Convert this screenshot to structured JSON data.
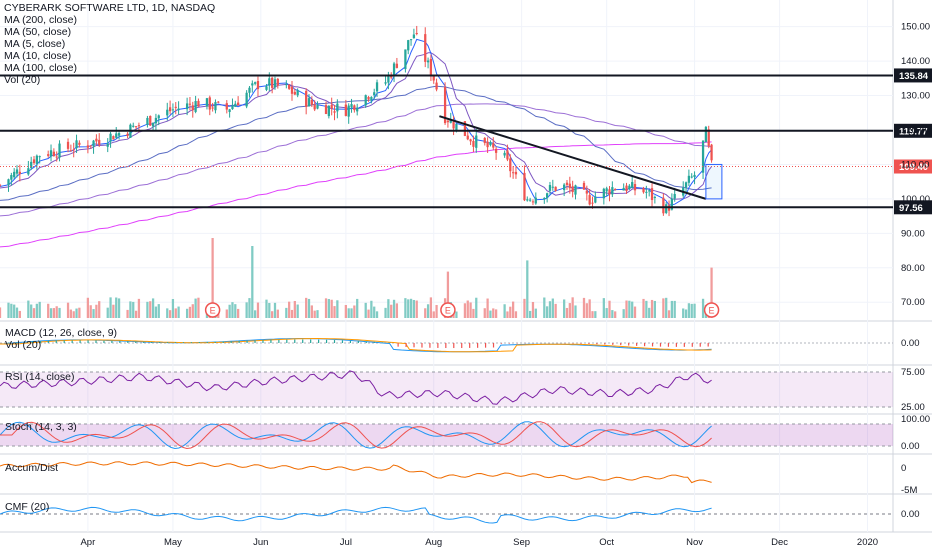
{
  "header": {
    "symbol_line": "CYBERARK SOFTWARE LTD, 1D, NASDAQ",
    "indicators": [
      "MA (200, close)",
      "MA (50, close)",
      "MA (5, close)",
      "MA (10, close)",
      "MA (100, close)",
      "Vol (20)"
    ]
  },
  "panes": {
    "macd": "MACD (12, 26, close, 9)",
    "vol": "Vol (20)",
    "rsi": "RSI (14, close)",
    "stoch": "Stoch (14, 3, 3)",
    "ad": "Accum/Dist",
    "cmf": "CMF (20)"
  },
  "colors": {
    "up": "#26a69a",
    "down": "#ef5350",
    "vol_up": "#80cbc4",
    "vol_down": "#f19c9c",
    "ma200": "#e040fb",
    "ma50": "#5b6ec4",
    "ma5": "#2962ff",
    "ma10": "#7e57c2",
    "ma100": "#9c6fd6",
    "rsi": "#7b1fa2",
    "stoch_k": "#2196f3",
    "stoch_d": "#ef5350",
    "ad": "#ef6c00",
    "cmf": "#2196f3"
  },
  "chart_data": [
    {
      "type": "candlestick",
      "title": "CYBERARK SOFTWARE LTD, 1D, NASDAQ",
      "x_labels": [
        "Apr",
        "May",
        "Jun",
        "Jul",
        "Aug",
        "Sep",
        "Oct",
        "Nov",
        "Dec",
        "2020"
      ],
      "y_ticks": [
        70,
        80,
        90,
        100,
        110,
        120,
        130,
        140,
        150
      ],
      "ylim": [
        66,
        156
      ],
      "x_range": [
        "2019-03-01",
        "2020-01-10"
      ],
      "ohlc_anchors": [
        [
          "2019-03-01",
          104
        ],
        [
          "2019-03-15",
          113
        ],
        [
          "2019-04-01",
          116
        ],
        [
          "2019-04-15",
          120
        ],
        [
          "2019-05-01",
          126
        ],
        [
          "2019-05-10",
          128
        ],
        [
          "2019-05-20",
          126
        ],
        [
          "2019-06-01",
          134
        ],
        [
          "2019-06-10",
          132
        ],
        [
          "2019-06-20",
          127
        ],
        [
          "2019-07-01",
          126
        ],
        [
          "2019-07-15",
          134
        ],
        [
          "2019-07-25",
          148
        ],
        [
          "2019-08-01",
          135
        ],
        [
          "2019-08-05",
          124
        ],
        [
          "2019-08-15",
          117
        ],
        [
          "2019-08-25",
          113
        ],
        [
          "2019-09-03",
          100
        ],
        [
          "2019-09-15",
          104
        ],
        [
          "2019-09-25",
          100
        ],
        [
          "2019-10-05",
          104
        ],
        [
          "2019-10-15",
          102
        ],
        [
          "2019-10-22",
          97
        ],
        [
          "2019-11-01",
          107
        ],
        [
          "2019-11-05",
          119
        ],
        [
          "2019-11-07",
          109.4
        ]
      ],
      "horizontal_levels": [
        {
          "label": "135.84",
          "value": 135.84,
          "color": "#131722"
        },
        {
          "label": "119.77",
          "value": 119.77,
          "color": "#131722"
        },
        {
          "label": "109.40",
          "value": 109.4,
          "color": "#ef5350"
        },
        {
          "label": "97.56",
          "value": 97.56,
          "color": "#131722"
        }
      ],
      "trendline": {
        "from": [
          "2019-08-03",
          124
        ],
        "to": [
          "2019-11-05",
          100
        ]
      },
      "earnings_markers": [
        {
          "label": "E",
          "date": "2019-05-15"
        },
        {
          "label": "E",
          "date": "2019-08-06"
        },
        {
          "label": "E",
          "date": "2019-11-07"
        }
      ],
      "volume_spikes": [
        {
          "date": "2019-05-15",
          "rel": 1.0
        },
        {
          "date": "2019-05-29",
          "rel": 0.9
        },
        {
          "date": "2019-08-06",
          "rel": 0.58
        },
        {
          "date": "2019-09-03",
          "rel": 0.72
        },
        {
          "date": "2019-11-07",
          "rel": 0.63
        }
      ]
    },
    {
      "type": "line",
      "title": "MACD (12, 26, close, 9)",
      "y_ticks": [
        0.0
      ],
      "y_tick_labels": [
        "0.00"
      ]
    },
    {
      "type": "line",
      "title": "RSI (14, close)",
      "y_ticks": [
        75,
        25
      ],
      "y_tick_labels": [
        "75.00",
        "25.00"
      ],
      "anchors": [
        [
          0,
          55
        ],
        [
          0.1,
          60
        ],
        [
          0.2,
          68
        ],
        [
          0.3,
          52
        ],
        [
          0.38,
          62
        ],
        [
          0.5,
          72
        ],
        [
          0.54,
          42
        ],
        [
          0.62,
          45
        ],
        [
          0.7,
          33
        ],
        [
          0.78,
          50
        ],
        [
          0.86,
          44
        ],
        [
          0.92,
          50
        ],
        [
          0.97,
          70
        ],
        [
          1.0,
          62
        ]
      ]
    },
    {
      "type": "line",
      "title": "Stoch (14, 3, 3)",
      "y_ticks": [
        100,
        0
      ],
      "y_tick_labels": [
        "100.00",
        "0.00"
      ]
    },
    {
      "type": "line",
      "title": "Accum/Dist",
      "y_ticks": [
        0,
        -5
      ],
      "y_tick_labels": [
        "0",
        "-5M"
      ]
    },
    {
      "type": "line",
      "title": "CMF (20)",
      "y_ticks": [
        0
      ],
      "y_tick_labels": [
        "0.00"
      ]
    }
  ]
}
